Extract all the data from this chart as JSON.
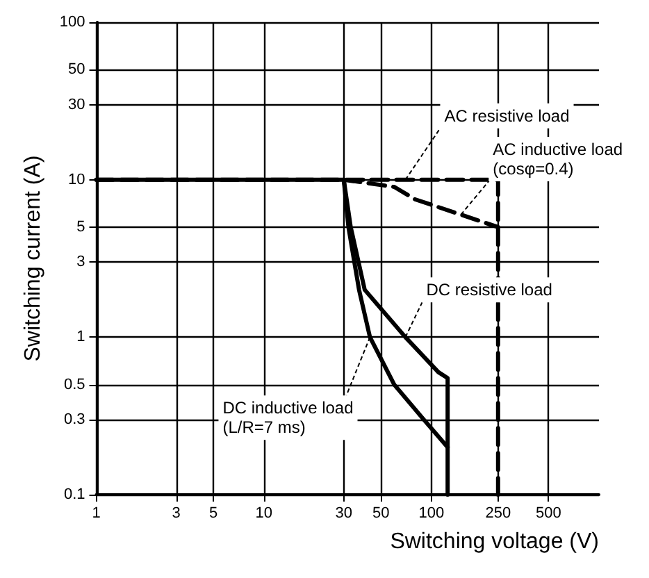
{
  "chart_data": {
    "type": "line",
    "xlabel": "Switching voltage (V)",
    "ylabel": "Switching current (A)",
    "log": "xy",
    "xlim": [
      1,
      1000
    ],
    "ylim": [
      0.1,
      100
    ],
    "xticks": [
      1,
      3,
      5,
      10,
      30,
      50,
      100,
      250,
      500
    ],
    "yticks": [
      0.1,
      0.3,
      0.5,
      1,
      3,
      5,
      10,
      30,
      50,
      100
    ],
    "grid": true,
    "marker": "none",
    "series": [
      {
        "color": "#000000",
        "line_style": "dashed",
        "x": [
          1,
          250,
          250
        ],
        "values": [
          10,
          10,
          0.1
        ]
      },
      {
        "color": "#000000",
        "line_style": "dashed",
        "x": [
          30,
          60,
          80,
          150,
          250
        ],
        "values": [
          10,
          9,
          7.5,
          6,
          5
        ]
      },
      {
        "color": "#000000",
        "line_style": "solid",
        "x": [
          1,
          30,
          33,
          40,
          70,
          110,
          125,
          125
        ],
        "values": [
          10,
          10,
          5,
          2,
          1,
          0.6,
          0.55,
          0.1
        ]
      },
      {
        "color": "#000000",
        "line_style": "solid",
        "x": [
          30,
          32,
          37,
          43,
          60,
          90,
          125
        ],
        "values": [
          10,
          5,
          2,
          1,
          0.5,
          0.3,
          0.2
        ]
      }
    ],
    "annotations": [
      {
        "text": "AC resistive load",
        "x": 70,
        "y": 10
      },
      {
        "text": "AC inductive load\n(cosφ=0.4)",
        "x": 150,
        "y": 6
      },
      {
        "text": "DC resistive load",
        "x": 70,
        "y": 1
      },
      {
        "text": "DC inductive load\n(L/R=7 ms)",
        "x": 43,
        "y": 1
      }
    ]
  }
}
